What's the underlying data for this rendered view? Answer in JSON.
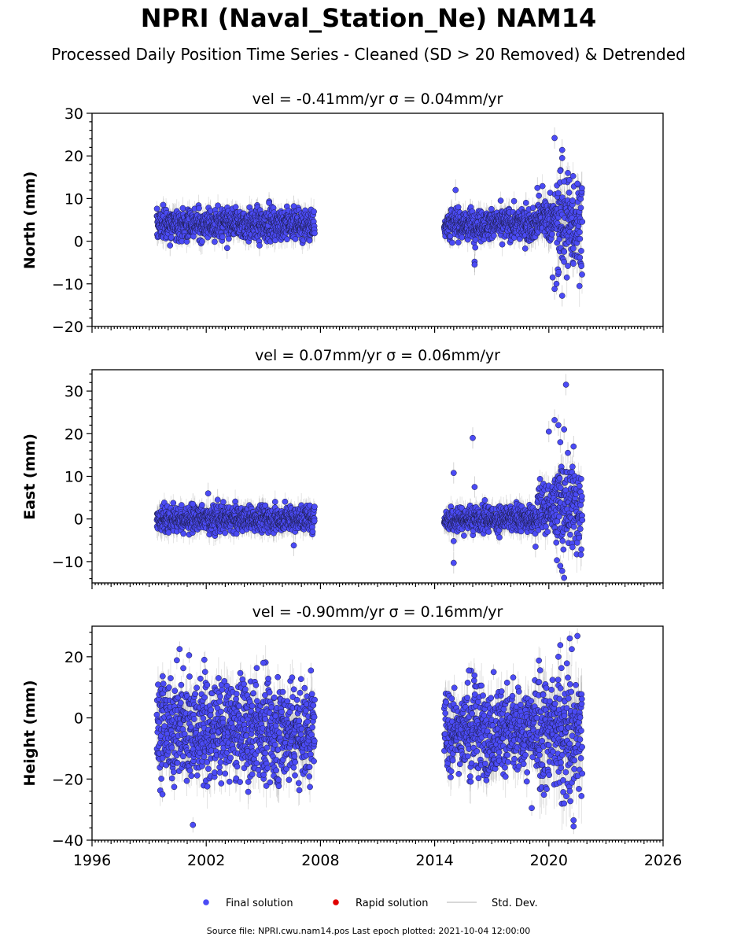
{
  "title": "NPRI (Naval_Station_Ne) NAM14",
  "subtitle": "Processed Daily Position Time Series - Cleaned (SD > 20 Removed) & Detrended",
  "footer": "Source file: NPRI.cwu.nam14.pos  Last epoch plotted: 2021-10-04 12:00:00",
  "colors": {
    "final": "#4b4bf5",
    "rapid": "#e00000",
    "stddev": "#9a9a9a"
  },
  "legend": [
    {
      "key": "final",
      "label": "Final solution"
    },
    {
      "key": "rapid",
      "label": "Rapid solution"
    },
    {
      "key": "stddev",
      "label": "Std. Dev."
    }
  ],
  "chart_data": [
    {
      "type": "scatter",
      "component": "north",
      "panel_title": "vel = -0.41mm/yr   σ = 0.04mm/yr",
      "ylabel": "North (mm)",
      "xlim": [
        1996,
        2026
      ],
      "ylim": [
        -20,
        30
      ],
      "yticks": [
        -20,
        -10,
        0,
        10,
        20,
        30
      ],
      "xticks": [
        1996,
        2002,
        2008,
        2014,
        2020,
        2026
      ],
      "show_xtick_labels": false,
      "segments": [
        {
          "x_start": 1999.4,
          "x_end": 2007.7,
          "mean": 4.0,
          "spread": 1.8,
          "sd": 2.0
        },
        {
          "x_start": 2014.5,
          "x_end": 2019.4,
          "mean": 4.0,
          "spread": 1.8,
          "sd": 2.0
        },
        {
          "x_start": 2019.4,
          "x_end": 2020.4,
          "mean": 5.5,
          "spread": 2.6,
          "sd": 2.5
        },
        {
          "x_start": 2020.4,
          "x_end": 2021.76,
          "mean": 4.0,
          "spread": 5.5,
          "sd": 3.5
        }
      ],
      "outliers": [
        {
          "x": 2000.1,
          "y": -1.0
        },
        {
          "x": 2003.1,
          "y": -1.6
        },
        {
          "x": 2004.8,
          "y": -1.0
        },
        {
          "x": 2005.3,
          "y": 9.0
        },
        {
          "x": 2006.6,
          "y": 8.2
        },
        {
          "x": 2015.1,
          "y": 12.0
        },
        {
          "x": 2016.1,
          "y": -4.8
        },
        {
          "x": 2016.1,
          "y": -5.5
        },
        {
          "x": 2018.8,
          "y": 9.0
        },
        {
          "x": 2019.4,
          "y": 12.5
        },
        {
          "x": 2020.3,
          "y": 24.2
        },
        {
          "x": 2020.7,
          "y": 21.4
        },
        {
          "x": 2020.7,
          "y": 19.5
        },
        {
          "x": 2020.6,
          "y": 16.5
        },
        {
          "x": 2020.8,
          "y": 14.0
        },
        {
          "x": 2021.0,
          "y": 16.0
        },
        {
          "x": 2020.2,
          "y": -8.5
        },
        {
          "x": 2020.3,
          "y": -11.2
        },
        {
          "x": 2020.4,
          "y": -10.0
        },
        {
          "x": 2020.7,
          "y": -12.8
        },
        {
          "x": 2021.0,
          "y": -5.8
        },
        {
          "x": 2021.5,
          "y": 13.5
        }
      ]
    },
    {
      "type": "scatter",
      "component": "east",
      "panel_title": "vel = 0.07mm/yr   σ = 0.06mm/yr",
      "ylabel": "East (mm)",
      "xlim": [
        1996,
        2026
      ],
      "ylim": [
        -15,
        35
      ],
      "yticks": [
        -10,
        0,
        10,
        20,
        30
      ],
      "xticks": [
        1996,
        2002,
        2008,
        2014,
        2020,
        2026
      ],
      "show_xtick_labels": false,
      "segments": [
        {
          "x_start": 1999.4,
          "x_end": 2007.7,
          "mean": 0.0,
          "spread": 1.5,
          "sd": 2.0
        },
        {
          "x_start": 2014.5,
          "x_end": 2019.4,
          "mean": 0.0,
          "spread": 1.5,
          "sd": 2.0
        },
        {
          "x_start": 2019.4,
          "x_end": 2020.3,
          "mean": 2.5,
          "spread": 3.0,
          "sd": 2.5
        },
        {
          "x_start": 2020.3,
          "x_end": 2021.76,
          "mean": 3.0,
          "spread": 5.0,
          "sd": 3.0
        }
      ],
      "outliers": [
        {
          "x": 2001.3,
          "y": 3.5
        },
        {
          "x": 2002.1,
          "y": 6.0
        },
        {
          "x": 2002.6,
          "y": 4.5
        },
        {
          "x": 2006.6,
          "y": -6.2
        },
        {
          "x": 2015.0,
          "y": 10.8
        },
        {
          "x": 2015.0,
          "y": -10.3
        },
        {
          "x": 2015.0,
          "y": -5.2
        },
        {
          "x": 2016.0,
          "y": 19.0
        },
        {
          "x": 2016.1,
          "y": 7.5
        },
        {
          "x": 2019.3,
          "y": -6.5
        },
        {
          "x": 2020.0,
          "y": 20.5
        },
        {
          "x": 2020.3,
          "y": 23.2
        },
        {
          "x": 2020.5,
          "y": 22.0
        },
        {
          "x": 2020.8,
          "y": 21.0
        },
        {
          "x": 2020.9,
          "y": 31.5
        },
        {
          "x": 2020.6,
          "y": 18.0
        },
        {
          "x": 2020.6,
          "y": -11.0
        },
        {
          "x": 2020.8,
          "y": -13.8
        },
        {
          "x": 2020.7,
          "y": -12.2
        },
        {
          "x": 2021.3,
          "y": 17.0
        },
        {
          "x": 2021.0,
          "y": 15.5
        }
      ]
    },
    {
      "type": "scatter",
      "component": "height",
      "panel_title": "vel = -0.90mm/yr   σ = 0.16mm/yr",
      "ylabel": "Height (mm)",
      "xlim": [
        1996,
        2026
      ],
      "ylim": [
        -40,
        30
      ],
      "yticks": [
        -40,
        -20,
        0,
        20
      ],
      "xticks": [
        1996,
        2002,
        2008,
        2014,
        2020,
        2026
      ],
      "show_xtick_labels": true,
      "segments": [
        {
          "x_start": 1999.4,
          "x_end": 2007.7,
          "mean": -4.0,
          "spread": 8.0,
          "sd": 5.0
        },
        {
          "x_start": 2014.5,
          "x_end": 2019.4,
          "mean": -4.0,
          "spread": 7.0,
          "sd": 5.0
        },
        {
          "x_start": 2019.4,
          "x_end": 2021.76,
          "mean": -5.0,
          "spread": 10.0,
          "sd": 7.0
        }
      ],
      "outliers": [
        {
          "x": 2000.6,
          "y": 22.5
        },
        {
          "x": 2001.1,
          "y": 20.5
        },
        {
          "x": 2001.9,
          "y": 19.0
        },
        {
          "x": 2005.0,
          "y": 18.0
        },
        {
          "x": 2001.3,
          "y": -35.0
        },
        {
          "x": 1999.7,
          "y": -25.0
        },
        {
          "x": 2007.5,
          "y": 15.5
        },
        {
          "x": 2015.8,
          "y": 15.5
        },
        {
          "x": 2017.1,
          "y": 15.0
        },
        {
          "x": 2019.1,
          "y": -29.5
        },
        {
          "x": 2020.5,
          "y": 20.0
        },
        {
          "x": 2020.6,
          "y": 23.8
        },
        {
          "x": 2021.1,
          "y": 26.0
        },
        {
          "x": 2021.5,
          "y": 26.8
        },
        {
          "x": 2021.3,
          "y": -35.5
        },
        {
          "x": 2021.3,
          "y": -33.5
        },
        {
          "x": 2020.8,
          "y": -28.0
        }
      ]
    }
  ]
}
